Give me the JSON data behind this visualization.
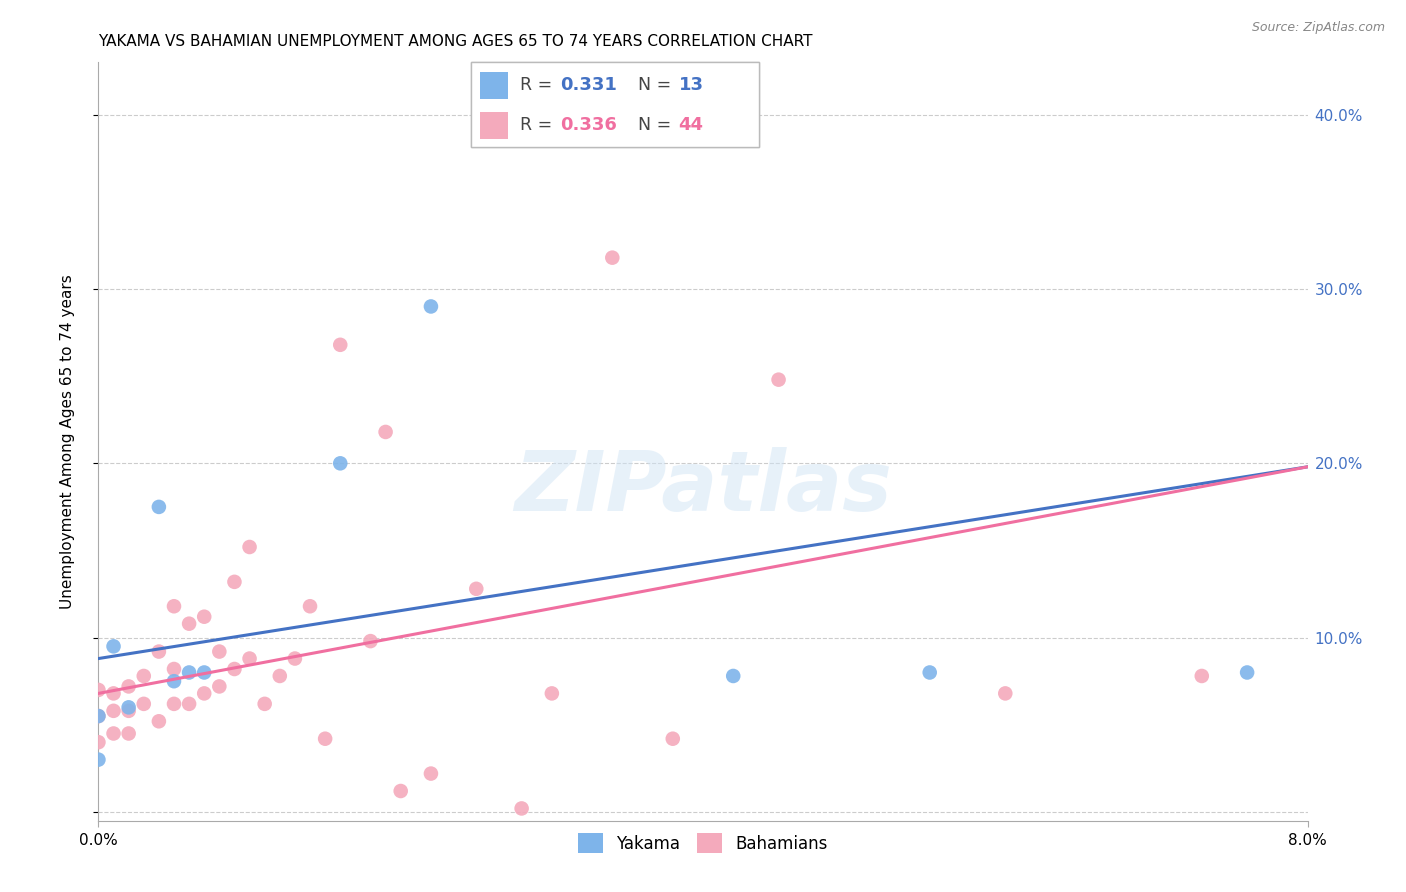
{
  "title": "YAKAMA VS BAHAMIAN UNEMPLOYMENT AMONG AGES 65 TO 74 YEARS CORRELATION CHART",
  "source": "Source: ZipAtlas.com",
  "ylabel": "Unemployment Among Ages 65 to 74 years",
  "right_yticks": [
    0.0,
    0.1,
    0.2,
    0.3,
    0.4
  ],
  "right_yticklabels": [
    "",
    "10.0%",
    "20.0%",
    "30.0%",
    "40.0%"
  ],
  "xmin": 0.0,
  "xmax": 0.08,
  "ymin": -0.005,
  "ymax": 0.43,
  "yakama_color": "#7EB4EA",
  "bahamian_color": "#F4AABC",
  "trendline_yakama_color": "#4472C4",
  "trendline_bahamian_color": "#F06FA0",
  "legend_R_yakama": "0.331",
  "legend_N_yakama": "13",
  "legend_R_bahamian": "0.336",
  "legend_N_bahamian": "44",
  "watermark": "ZIPatlas",
  "yakama_x": [
    0.0,
    0.0,
    0.001,
    0.002,
    0.004,
    0.005,
    0.006,
    0.007,
    0.016,
    0.022,
    0.042,
    0.055,
    0.076
  ],
  "yakama_y": [
    0.03,
    0.055,
    0.095,
    0.06,
    0.175,
    0.075,
    0.08,
    0.08,
    0.2,
    0.29,
    0.078,
    0.08,
    0.08
  ],
  "bahamian_x": [
    0.0,
    0.0,
    0.0,
    0.001,
    0.001,
    0.001,
    0.002,
    0.002,
    0.002,
    0.003,
    0.003,
    0.004,
    0.004,
    0.005,
    0.005,
    0.005,
    0.006,
    0.006,
    0.007,
    0.007,
    0.008,
    0.008,
    0.009,
    0.009,
    0.01,
    0.01,
    0.011,
    0.012,
    0.013,
    0.014,
    0.015,
    0.016,
    0.018,
    0.019,
    0.02,
    0.022,
    0.025,
    0.028,
    0.03,
    0.034,
    0.038,
    0.045,
    0.06,
    0.073
  ],
  "bahamian_y": [
    0.04,
    0.055,
    0.07,
    0.045,
    0.058,
    0.068,
    0.045,
    0.058,
    0.072,
    0.062,
    0.078,
    0.052,
    0.092,
    0.062,
    0.082,
    0.118,
    0.062,
    0.108,
    0.068,
    0.112,
    0.072,
    0.092,
    0.082,
    0.132,
    0.088,
    0.152,
    0.062,
    0.078,
    0.088,
    0.118,
    0.042,
    0.268,
    0.098,
    0.218,
    0.012,
    0.022,
    0.128,
    0.002,
    0.068,
    0.318,
    0.042,
    0.248,
    0.068,
    0.078
  ],
  "trendline_yakama_x0": 0.0,
  "trendline_yakama_y0": 0.088,
  "trendline_yakama_x1": 0.08,
  "trendline_yakama_y1": 0.198,
  "trendline_bahamian_x0": 0.0,
  "trendline_bahamian_y0": 0.068,
  "trendline_bahamian_x1": 0.08,
  "trendline_bahamian_y1": 0.198
}
